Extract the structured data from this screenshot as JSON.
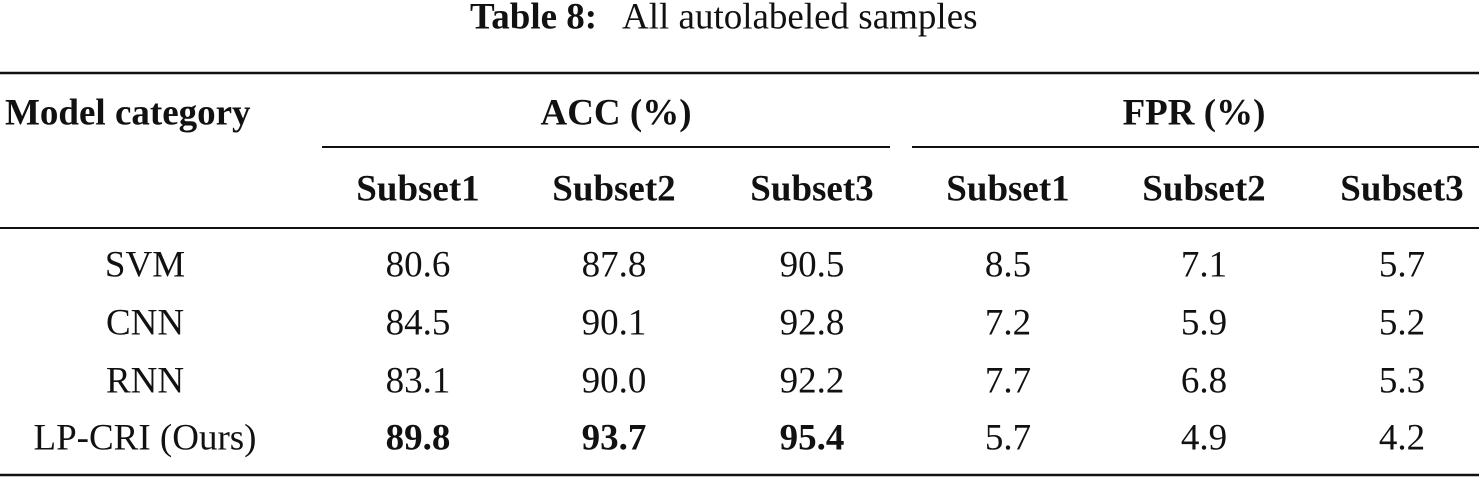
{
  "caption": {
    "label": "Table 8:",
    "text": "All autolabeled samples"
  },
  "table": {
    "header": {
      "row_label": "Model category",
      "groups": [
        "ACC (%)",
        "FPR (%)"
      ],
      "subheaders": [
        "Subset1",
        "Subset2",
        "Subset3",
        "Subset1",
        "Subset2",
        "Subset3"
      ]
    },
    "rows": [
      [
        "SVM",
        "80.6",
        "87.8",
        "90.5",
        "8.5",
        "7.1",
        "5.7"
      ],
      [
        "CNN",
        "84.5",
        "90.1",
        "92.8",
        "7.2",
        "5.9",
        "5.2"
      ],
      [
        "RNN",
        "83.1",
        "90.0",
        "92.2",
        "7.7",
        "6.8",
        "5.3"
      ],
      [
        "LP-CRI (Ours)",
        "89.8",
        "93.7",
        "95.4",
        "5.7",
        "4.9",
        "4.2"
      ]
    ]
  }
}
